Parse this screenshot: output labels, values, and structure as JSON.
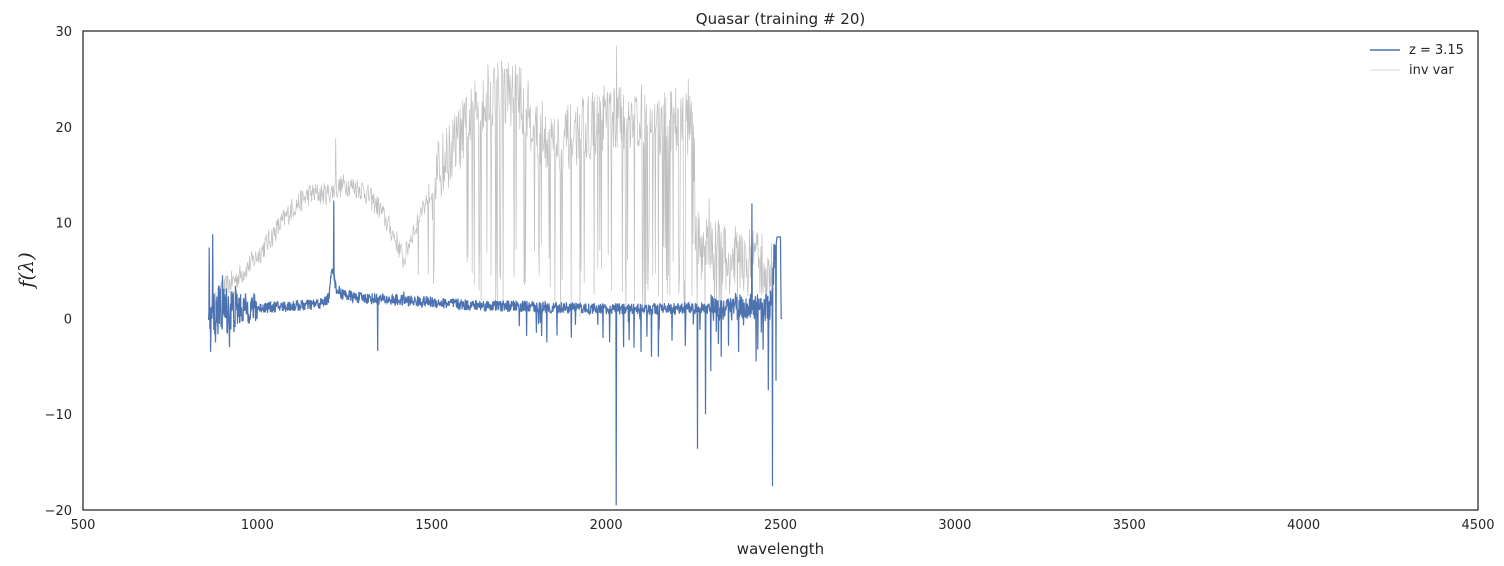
{
  "chart_data": {
    "type": "line",
    "title": "Quasar (training # 20)",
    "xlabel": "wavelength",
    "ylabel": "f(λ)",
    "xlim": [
      500,
      4500
    ],
    "ylim": [
      -20,
      30
    ],
    "xticks": [
      500,
      1000,
      1500,
      2000,
      2500,
      3000,
      3500,
      4000,
      4500
    ],
    "yticks": [
      -20,
      -10,
      0,
      10,
      20,
      30
    ],
    "grid": false,
    "legend_position": "top-right",
    "series": [
      {
        "name": "z = 3.15",
        "color": "#4c72b0",
        "x_range": [
          860,
          2505
        ],
        "envelope": [
          [
            860,
            0.0
          ],
          [
            880,
            0.8
          ],
          [
            900,
            0.9
          ],
          [
            950,
            1.0
          ],
          [
            1000,
            1.1
          ],
          [
            1050,
            1.2
          ],
          [
            1100,
            1.3
          ],
          [
            1150,
            1.4
          ],
          [
            1190,
            1.6
          ],
          [
            1205,
            2.2
          ],
          [
            1215,
            5.5
          ],
          [
            1225,
            3.2
          ],
          [
            1240,
            2.6
          ],
          [
            1280,
            2.2
          ],
          [
            1350,
            2.0
          ],
          [
            1400,
            1.9
          ],
          [
            1500,
            1.7
          ],
          [
            1600,
            1.4
          ],
          [
            1700,
            1.3
          ],
          [
            1800,
            1.2
          ],
          [
            1900,
            1.1
          ],
          [
            2000,
            1.0
          ],
          [
            2100,
            1.0
          ],
          [
            2200,
            1.0
          ],
          [
            2300,
            1.1
          ],
          [
            2400,
            1.2
          ],
          [
            2470,
            1.3
          ],
          [
            2490,
            8.5
          ],
          [
            2500,
            8.5
          ],
          [
            2502,
            0.0
          ],
          [
            2505,
            0.0
          ]
        ],
        "spikes": [
          [
            862,
            7.4
          ],
          [
            866,
            -3.5
          ],
          [
            872,
            8.8
          ],
          [
            880,
            -2.5
          ],
          [
            900,
            4.5
          ],
          [
            920,
            -3.0
          ],
          [
            1219,
            12.3
          ],
          [
            1345,
            -3.4
          ],
          [
            1420,
            2.8
          ],
          [
            1800,
            -1.5
          ],
          [
            1830,
            -2.5
          ],
          [
            1900,
            -2.0
          ],
          [
            2010,
            -2.5
          ],
          [
            2029,
            -19.5
          ],
          [
            2050,
            -3.0
          ],
          [
            2100,
            -3.5
          ],
          [
            2130,
            -4.0
          ],
          [
            2150,
            -4.0
          ],
          [
            2262,
            -13.6
          ],
          [
            2285,
            -10.0
          ],
          [
            2300,
            -5.5
          ],
          [
            2330,
            -4.0
          ],
          [
            2380,
            -3.5
          ],
          [
            2418,
            12.0
          ],
          [
            2430,
            -4.5
          ],
          [
            2465,
            -7.5
          ],
          [
            2477,
            -17.5
          ],
          [
            2481,
            7.8
          ],
          [
            2487,
            -6.5
          ]
        ]
      },
      {
        "name": "inv var",
        "color": "#c0c0c0",
        "x_range": [
          860,
          2480
        ],
        "envelope": [
          [
            860,
            0.0
          ],
          [
            900,
            3.0
          ],
          [
            950,
            4.5
          ],
          [
            1000,
            6.5
          ],
          [
            1050,
            9.0
          ],
          [
            1100,
            11.5
          ],
          [
            1150,
            13.0
          ],
          [
            1200,
            13.0
          ],
          [
            1250,
            14.0
          ],
          [
            1300,
            13.5
          ],
          [
            1350,
            11.5
          ],
          [
            1400,
            8.0
          ],
          [
            1420,
            6.0
          ],
          [
            1440,
            8.5
          ],
          [
            1480,
            12.0
          ],
          [
            1530,
            16.0
          ],
          [
            1600,
            20.0
          ],
          [
            1650,
            23.0
          ],
          [
            1700,
            24.0
          ],
          [
            1750,
            23.0
          ],
          [
            1800,
            20.0
          ],
          [
            1850,
            18.0
          ],
          [
            1900,
            19.0
          ],
          [
            1950,
            20.0
          ],
          [
            2000,
            21.0
          ],
          [
            2050,
            21.0
          ],
          [
            2100,
            21.0
          ],
          [
            2150,
            20.0
          ],
          [
            2200,
            21.0
          ],
          [
            2250,
            20.0
          ],
          [
            2260,
            8.0
          ],
          [
            2300,
            7.0
          ],
          [
            2350,
            6.5
          ],
          [
            2400,
            6.0
          ],
          [
            2450,
            5.5
          ],
          [
            2480,
            4.0
          ]
        ],
        "peaks": [
          [
            1225,
            18.8
          ],
          [
            1740,
            26.5
          ],
          [
            2030,
            28.5
          ],
          [
            2235,
            25.0
          ],
          [
            2295,
            12.5
          ]
        ]
      }
    ]
  }
}
